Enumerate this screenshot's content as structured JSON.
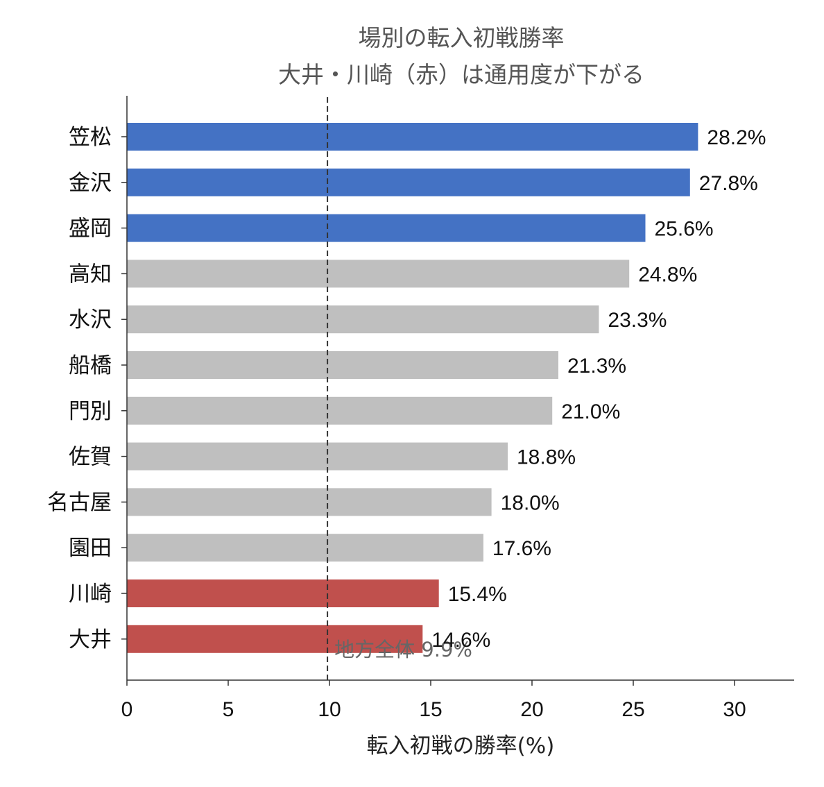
{
  "chart_data": {
    "type": "bar",
    "orientation": "horizontal",
    "title": "場別の転入初戦勝率",
    "subtitle": "大井・川崎（赤）は通用度が下がる",
    "xlabel": "転入初戦の勝率(%)",
    "ylabel": "",
    "xlim": [
      0,
      33
    ],
    "xticks": [
      0,
      5,
      10,
      15,
      20,
      25,
      30
    ],
    "grid": false,
    "value_suffix": "%",
    "categories": [
      "笠松",
      "金沢",
      "盛岡",
      "高知",
      "水沢",
      "船橋",
      "門別",
      "佐賀",
      "名古屋",
      "園田",
      "川崎",
      "大井"
    ],
    "values": [
      28.2,
      27.8,
      25.6,
      24.8,
      23.3,
      21.3,
      21.0,
      18.8,
      18.0,
      17.6,
      15.4,
      14.6
    ],
    "value_labels": [
      "28.2%",
      "27.8%",
      "25.6%",
      "24.8%",
      "23.3%",
      "21.3%",
      "21.0%",
      "18.8%",
      "18.0%",
      "17.6%",
      "15.4%",
      "14.6%"
    ],
    "bar_groups": [
      "high",
      "high",
      "high",
      "other",
      "other",
      "other",
      "other",
      "other",
      "other",
      "other",
      "low",
      "low"
    ],
    "colors": {
      "high": "#4472c4",
      "other": "#bfbfbf",
      "low": "#c0504d"
    },
    "reference_line": {
      "value": 9.9,
      "label": "地方全体 9.9%",
      "style": "dashed",
      "color": "#333333"
    }
  }
}
